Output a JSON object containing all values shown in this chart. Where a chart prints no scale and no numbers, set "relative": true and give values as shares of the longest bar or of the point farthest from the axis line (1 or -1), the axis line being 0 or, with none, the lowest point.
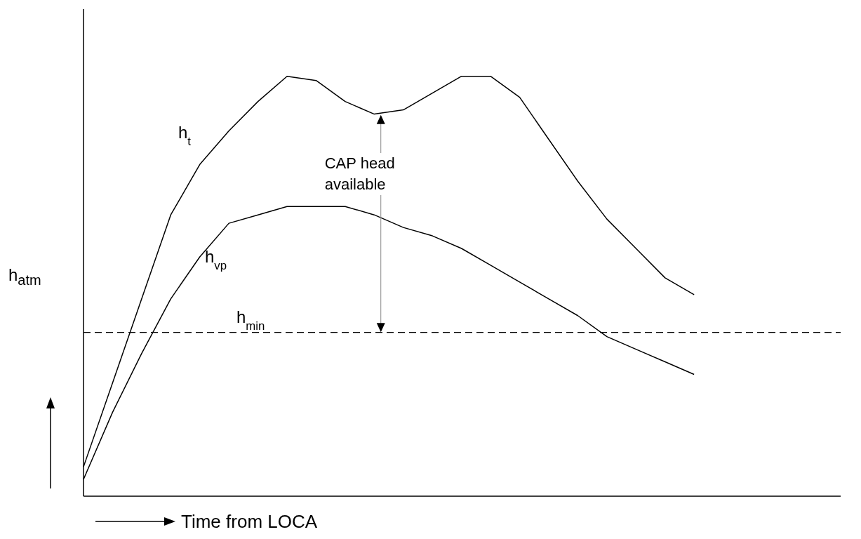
{
  "chart_data": {
    "type": "line",
    "relative": true,
    "xlabel": "Time from LOCA",
    "ylabel": "h$_{atm}$",
    "categories": [
      null,
      null,
      null,
      null,
      null,
      null,
      null,
      null,
      null,
      null,
      null,
      null,
      null,
      null,
      null,
      null,
      null,
      null,
      null,
      null,
      null,
      null
    ],
    "series": [
      {
        "name": "h$_{t}$",
        "color": "#000000",
        "values": [
          0.07,
          0.27,
          0.47,
          0.67,
          0.79,
          0.87,
          0.94,
          1.0,
          0.99,
          0.94,
          0.91,
          0.92,
          0.96,
          1.0,
          1.0,
          0.95,
          0.85,
          0.75,
          0.66,
          0.59,
          0.52,
          0.48
        ]
      },
      {
        "name": "h$_{vp}$",
        "color": "#000000",
        "values": [
          0.04,
          0.2,
          0.34,
          0.47,
          0.57,
          0.65,
          0.67,
          0.69,
          0.69,
          0.69,
          0.67,
          0.64,
          0.62,
          0.59,
          0.55,
          0.51,
          0.47,
          0.43,
          0.38,
          0.35,
          0.32,
          0.29
        ]
      }
    ],
    "ref_lines": [
      {
        "axis": "y",
        "value": 0.39,
        "label": "h$_{min}$",
        "color": "#000000",
        "line_style": "dashed"
      }
    ],
    "annotations": [
      "CAP head available"
    ],
    "grid": false,
    "legend": false,
    "marker": "none",
    "line_style": "solid"
  }
}
